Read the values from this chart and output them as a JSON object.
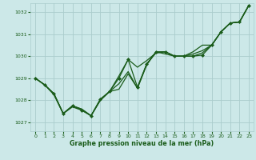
{
  "bg_color": "#cce8e8",
  "line_color": "#1a5c1a",
  "grid_color": "#aacccc",
  "xlabel": "Graphe pression niveau de la mer (hPa)",
  "ylim": [
    1026.6,
    1032.4
  ],
  "xlim": [
    -0.5,
    23.5
  ],
  "yticks": [
    1027,
    1028,
    1029,
    1030,
    1031,
    1032
  ],
  "xticks": [
    0,
    1,
    2,
    3,
    4,
    5,
    6,
    7,
    8,
    9,
    10,
    11,
    12,
    13,
    14,
    15,
    16,
    17,
    18,
    19,
    20,
    21,
    22,
    23
  ],
  "series": [
    {
      "y": [
        1029.0,
        1028.7,
        1028.3,
        1027.4,
        1027.75,
        1027.6,
        1027.3,
        1028.0,
        1028.4,
        1028.5,
        1029.2,
        1028.55,
        1029.6,
        1030.2,
        1030.1,
        1030.0,
        1030.0,
        1030.0,
        1030.15,
        1030.5,
        1031.1,
        1031.5,
        1031.55,
        1032.3
      ],
      "marker": null,
      "lw": 0.9
    },
    {
      "y": [
        1029.0,
        1028.7,
        1028.3,
        1027.4,
        1027.75,
        1027.6,
        1027.3,
        1028.0,
        1028.4,
        1029.1,
        1029.85,
        1029.5,
        1029.8,
        1030.15,
        1030.2,
        1030.0,
        1030.0,
        1030.2,
        1030.5,
        1030.5,
        1031.1,
        1031.5,
        1031.55,
        1032.3
      ],
      "marker": null,
      "lw": 0.9
    },
    {
      "y": [
        1029.0,
        1028.7,
        1028.3,
        1027.4,
        1027.75,
        1027.55,
        1027.3,
        1028.05,
        1028.4,
        1029.0,
        1029.85,
        1028.6,
        1029.65,
        1030.2,
        1030.2,
        1030.0,
        1030.0,
        1030.0,
        1030.05,
        1030.5,
        1031.1,
        1031.5,
        1031.55,
        1032.3
      ],
      "marker": "D",
      "lw": 0.9
    },
    {
      "y": [
        1029.0,
        1028.7,
        1028.25,
        1027.4,
        1027.7,
        1027.55,
        1027.3,
        1028.05,
        1028.4,
        1028.75,
        1029.3,
        1028.55,
        1029.65,
        1030.15,
        1030.2,
        1030.0,
        1030.0,
        1030.1,
        1030.25,
        1030.5,
        1031.1,
        1031.5,
        1031.55,
        1032.3
      ],
      "marker": null,
      "lw": 0.9
    }
  ]
}
